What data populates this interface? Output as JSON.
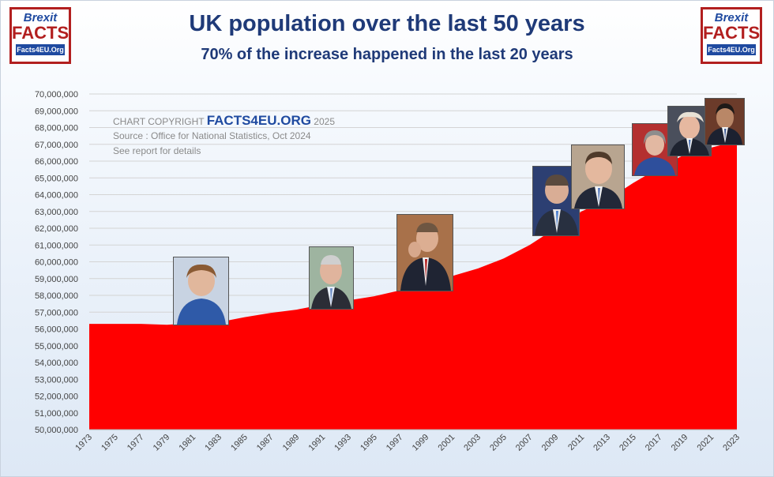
{
  "header": {
    "title": "UK population over the last 50 years",
    "subtitle": "70% of the increase happened in the last 20 years"
  },
  "logo": {
    "line1": "Brexit",
    "line2": "FACTS",
    "line3": "Facts4EU.Org"
  },
  "notes": {
    "copyright_prefix": "CHART COPYRIGHT",
    "copyright_brand": "FACTS4EU.ORG",
    "copyright_year": "2025",
    "source": "Source : Office for National Statistics, Oct 2024",
    "details": "See report for details"
  },
  "colors": {
    "fill": "#ff0000",
    "title": "#1f3a78",
    "brand": "#1f4aa0",
    "logo_red": "#b21f1f"
  },
  "photos": [
    "margaret-thatcher",
    "john-major",
    "tony-blair",
    "gordon-brown",
    "david-cameron",
    "theresa-may",
    "boris-johnson",
    "rishi-sunak"
  ],
  "chart_data": {
    "type": "area",
    "title": "UK population over the last 50 years",
    "subtitle": "70% of the increase happened in the last 20 years",
    "xlabel": "",
    "ylabel": "",
    "ylim": [
      50000000,
      70000000
    ],
    "yticks": [
      "50,000,000",
      "51,000,000",
      "52,000,000",
      "53,000,000",
      "54,000,000",
      "55,000,000",
      "56,000,000",
      "57,000,000",
      "58,000,000",
      "59,000,000",
      "60,000,000",
      "61,000,000",
      "62,000,000",
      "63,000,000",
      "64,000,000",
      "65,000,000",
      "66,000,000",
      "67,000,000",
      "68,000,000",
      "69,000,000",
      "70,000,000"
    ],
    "xticks": [
      "1973",
      "1975",
      "1977",
      "1979",
      "1981",
      "1983",
      "1985",
      "1987",
      "1989",
      "1991",
      "1993",
      "1995",
      "1997",
      "1999",
      "2001",
      "2003",
      "2005",
      "2007",
      "2009",
      "2011",
      "2013",
      "2015",
      "2017",
      "2019",
      "2021",
      "2023"
    ],
    "grid": true,
    "series": [
      {
        "x": [
          1973,
          1975,
          1977,
          1979,
          1981,
          1983,
          1985,
          1987,
          1989,
          1991,
          1993,
          1995,
          1997,
          1999,
          2001,
          2003,
          2005,
          2007,
          2009,
          2011,
          2013,
          2015,
          2017,
          2019,
          2021,
          2023
        ],
        "values": [
          56300000,
          56300000,
          56300000,
          56250000,
          56350000,
          56400000,
          56700000,
          56950000,
          57150000,
          57450000,
          57700000,
          57950000,
          58300000,
          58700000,
          59150000,
          59600000,
          60200000,
          61000000,
          62000000,
          63000000,
          63700000,
          64700000,
          65600000,
          66400000,
          66800000,
          67200000
        ]
      }
    ]
  }
}
